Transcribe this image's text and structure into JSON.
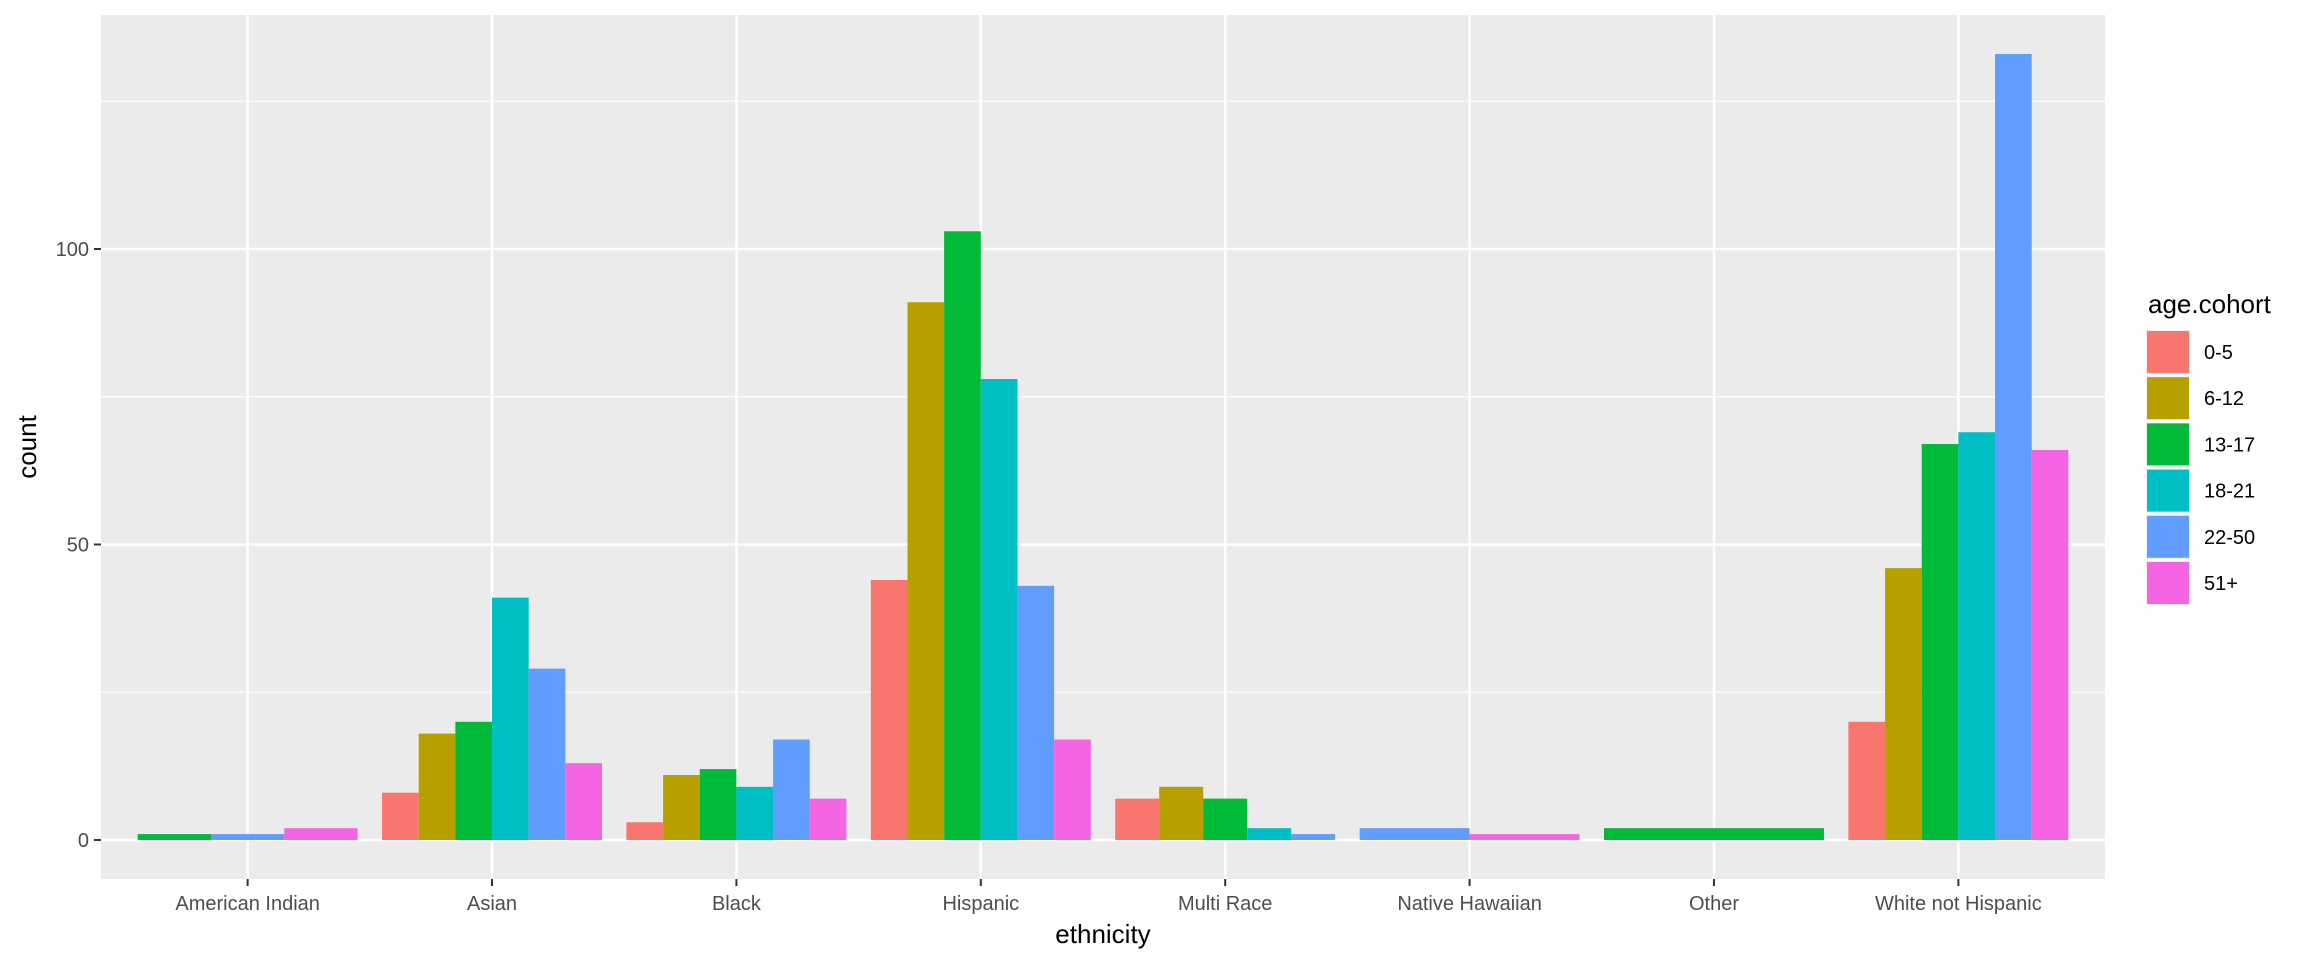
{
  "chart_data": {
    "type": "bar",
    "title": "",
    "xlabel": "ethnicity",
    "ylabel": "count",
    "ylim": [
      -6.5,
      140
    ],
    "yticks": [
      0,
      50,
      100
    ],
    "grid": true,
    "legend_title": "age.cohort",
    "legend_position": "right",
    "categories": [
      "American Indian",
      "Asian",
      "Black",
      "Hispanic",
      "Multi Race",
      "Native Hawaiian",
      "Other",
      "White not Hispanic"
    ],
    "series": [
      {
        "name": "0-5",
        "color": "#F8766D",
        "values": [
          null,
          8,
          3,
          44,
          7,
          null,
          null,
          20
        ]
      },
      {
        "name": "6-12",
        "color": "#B79F00",
        "values": [
          null,
          18,
          11,
          91,
          9,
          null,
          null,
          46
        ]
      },
      {
        "name": "13-17",
        "color": "#00BA38",
        "values": [
          1,
          20,
          12,
          103,
          7,
          null,
          2,
          67
        ]
      },
      {
        "name": "18-21",
        "color": "#00BFC4",
        "values": [
          null,
          41,
          9,
          78,
          2,
          null,
          null,
          69
        ]
      },
      {
        "name": "22-50",
        "color": "#619CFF",
        "values": [
          1,
          29,
          17,
          43,
          1,
          2,
          null,
          133
        ]
      },
      {
        "name": "51+",
        "color": "#F564E3",
        "values": [
          2,
          13,
          7,
          17,
          null,
          1,
          null,
          66
        ]
      }
    ]
  }
}
